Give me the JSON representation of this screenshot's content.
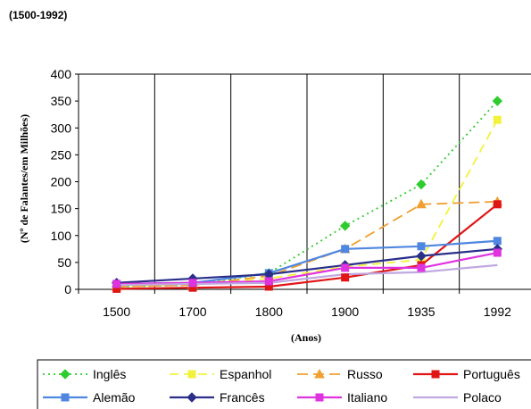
{
  "page": {
    "heading": "(1500-1992)"
  },
  "chart_data": {
    "type": "line",
    "title": "",
    "xlabel": "(Anos)",
    "ylabel": "(Nº de Falantes/em Milhões)",
    "categories": [
      "1500",
      "1700",
      "1800",
      "1900",
      "1935",
      "1992"
    ],
    "yticks": [
      "0",
      "50",
      "100",
      "150",
      "200",
      "250",
      "300",
      "350",
      "400"
    ],
    "ylim": [
      0,
      400
    ],
    "grid": {
      "vertical": true,
      "horizontal": false
    },
    "legend_position": "bottom",
    "series": [
      {
        "name": "Inglês",
        "color": "#2ecc2e",
        "dash": "2,4",
        "marker": "diamond",
        "values": [
          5,
          8,
          30,
          118,
          195,
          350
        ]
      },
      {
        "name": "Espanhol",
        "color": "#f2f23c",
        "dash": "10,6",
        "marker": "square",
        "values": [
          5,
          10,
          20,
          42,
          55,
          315
        ]
      },
      {
        "name": "Russo",
        "color": "#f0a030",
        "dash": "12,6",
        "marker": "triangle",
        "values": [
          5,
          8,
          25,
          75,
          158,
          163
        ]
      },
      {
        "name": "Português",
        "color": "#e01515",
        "dash": "",
        "marker": "square",
        "values": [
          1,
          3,
          5,
          22,
          45,
          158
        ]
      },
      {
        "name": "Alemão",
        "color": "#4f86e0",
        "dash": "",
        "marker": "square",
        "values": [
          10,
          12,
          30,
          75,
          80,
          90
        ]
      },
      {
        "name": "Francês",
        "color": "#2a2f8a",
        "dash": "",
        "marker": "diamond",
        "values": [
          12,
          20,
          28,
          45,
          62,
          75
        ]
      },
      {
        "name": "Italiano",
        "color": "#e033e0",
        "dash": "",
        "marker": "square",
        "values": [
          10,
          12,
          15,
          40,
          40,
          68
        ]
      },
      {
        "name": "Polaco",
        "color": "#c0a8e0",
        "dash": "",
        "marker": "none",
        "values": [
          8,
          10,
          12,
          28,
          32,
          45
        ]
      }
    ]
  }
}
